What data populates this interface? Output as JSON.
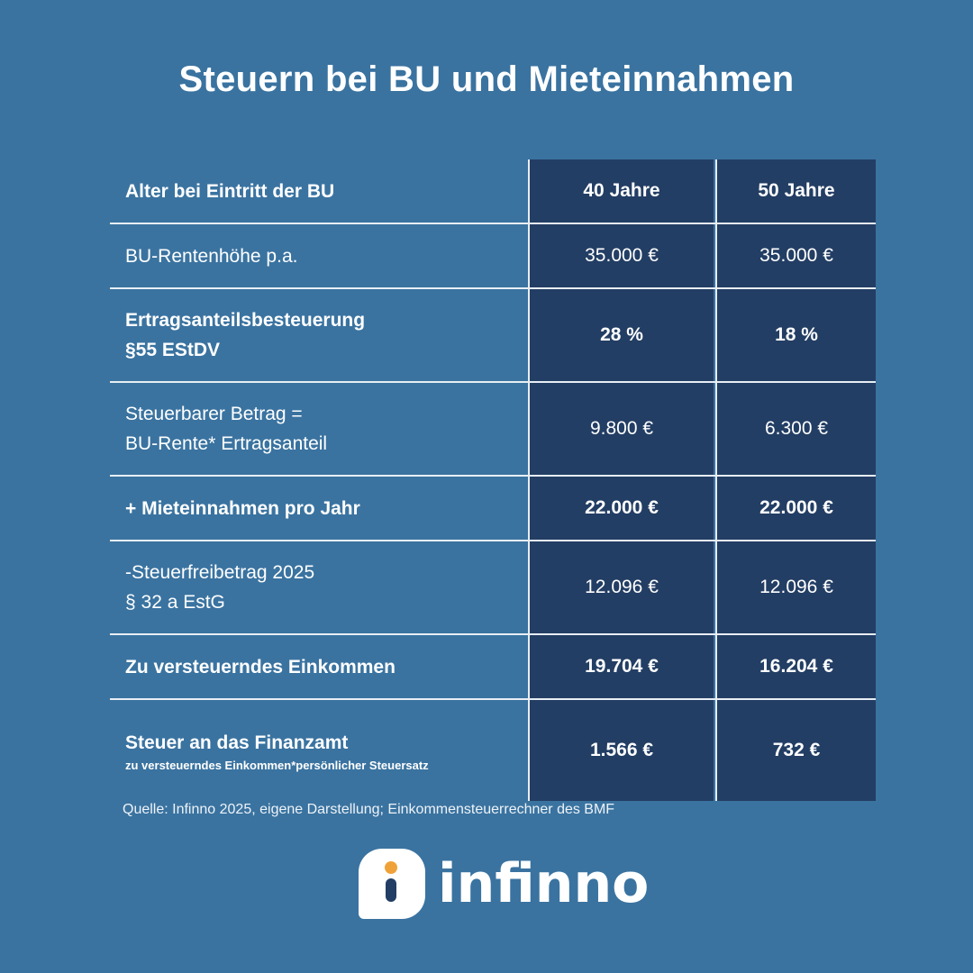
{
  "title": "Steuern bei BU und Mieteinnahmen",
  "table": {
    "header": {
      "label": "Alter bei Eintritt der BU",
      "col1": "40 Jahre",
      "col2": "50 Jahre"
    },
    "rows": [
      {
        "line1": "BU-Rentenhöhe p.a.",
        "line2": "",
        "v1": "35.000 €",
        "v2": "35.000 €"
      },
      {
        "line1": "Ertragsanteilsbesteuerung",
        "line2": "§55 EStDV",
        "v1": "28 %",
        "v2": "18 %"
      },
      {
        "line1": "Steuerbarer Betrag =",
        "line2": "BU-Rente* Ertragsanteil",
        "v1": "9.800 €",
        "v2": "6.300 €"
      },
      {
        "line1": "+ Mieteinnahmen pro Jahr",
        "line2": "",
        "v1": "22.000 €",
        "v2": "22.000 €"
      },
      {
        "line1": "-Steuerfreibetrag 2025",
        "line2": "§ 32 a EstG",
        "v1": "12.096 €",
        "v2": "12.096 €"
      },
      {
        "line1": "Zu versteuerndes Einkommen",
        "line2": "",
        "v1": "19.704 €",
        "v2": "16.204 €"
      },
      {
        "line1": "Steuer an das Finanzamt",
        "line2": "zu versteuerndes Einkommen*persönlicher Steuersatz",
        "v1": "1.566 €",
        "v2": "732 €"
      }
    ]
  },
  "source": "Quelle: Infinno 2025, eigene Darstellung; Einkommensteuerrechner des BMF",
  "logo": {
    "text": "infinno",
    "icon": "info-i-icon",
    "accent": "#f0a23a"
  },
  "colors": {
    "background": "#3a73a0",
    "dark_cell": "#233e64"
  }
}
